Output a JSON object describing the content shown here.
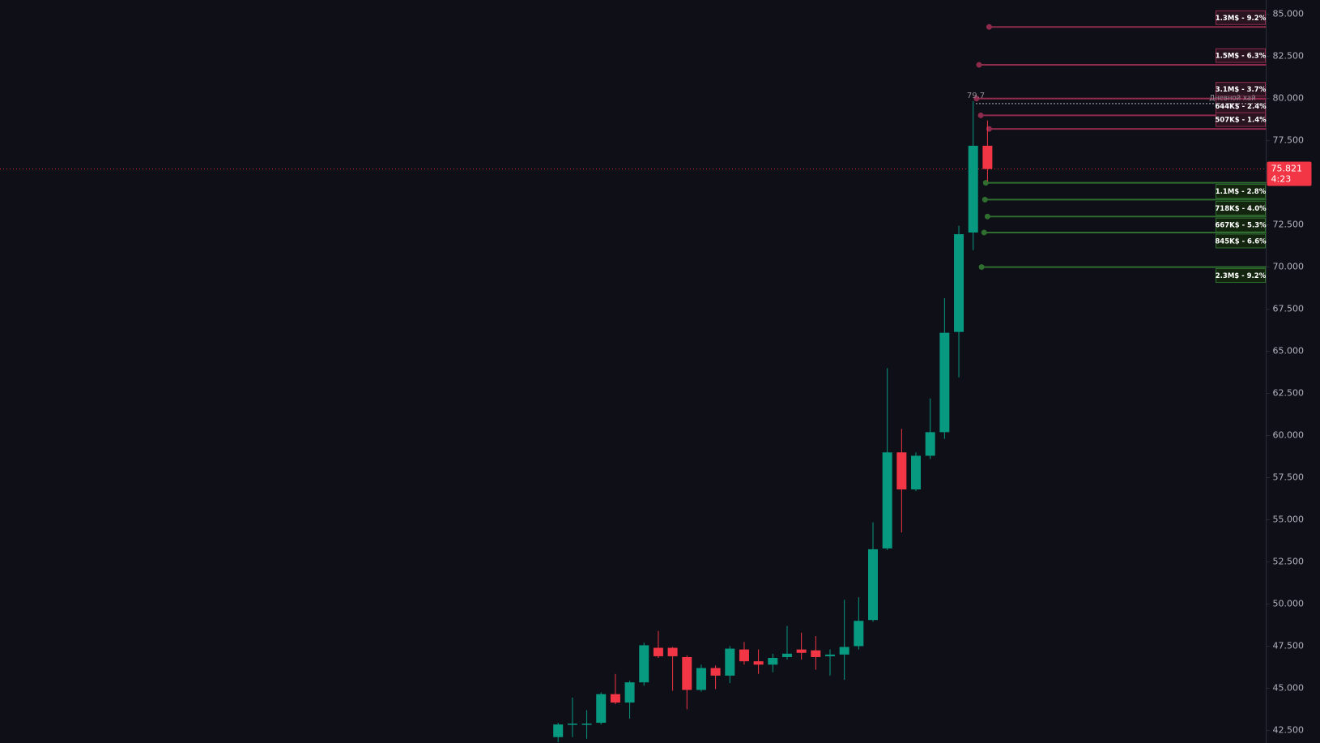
{
  "chart_data": {
    "type": "candlestick",
    "open": [
      42100,
      42850,
      42850,
      42950,
      44650,
      44150,
      45350,
      47400,
      47400,
      46850,
      44900,
      46200,
      45750,
      47300,
      46600,
      46400,
      46850,
      47300,
      47250,
      46900,
      47000,
      47500,
      49050,
      53300,
      59000,
      56800,
      58800,
      60200,
      66150,
      72050,
      77200
    ],
    "high": [
      42950,
      44450,
      43700,
      44750,
      45850,
      45450,
      47700,
      48400,
      47450,
      46950,
      46400,
      46350,
      47500,
      47750,
      47300,
      47050,
      48700,
      48300,
      48100,
      47300,
      50250,
      50400,
      54850,
      64000,
      60400,
      59000,
      62200,
      68150,
      72450,
      79850,
      78700
    ],
    "low": [
      41800,
      42100,
      42000,
      42850,
      44050,
      43200,
      45150,
      46800,
      44850,
      43750,
      44800,
      44950,
      45300,
      46400,
      45850,
      45950,
      46700,
      46700,
      46100,
      45750,
      45500,
      47300,
      48950,
      53200,
      54250,
      56700,
      58600,
      59800,
      63450,
      71000,
      75100
    ],
    "close": [
      42850,
      42900,
      42900,
      44650,
      44150,
      45350,
      47550,
      46900,
      46900,
      44900,
      46200,
      45750,
      47350,
      46600,
      46400,
      46800,
      47050,
      47100,
      46850,
      47000,
      47450,
      49000,
      53250,
      59000,
      56800,
      58800,
      60200,
      66100,
      71950,
      77200,
      75821
    ],
    "up_color": "#089981",
    "down_color": "#f23645",
    "ylim": [
      41750,
      85850
    ],
    "yticks": [
      {
        "value": 42500,
        "label": "42.500"
      },
      {
        "value": 45000,
        "label": "45.000"
      },
      {
        "value": 47500,
        "label": "47.500"
      },
      {
        "value": 50000,
        "label": "50.000"
      },
      {
        "value": 52500,
        "label": "52.500"
      },
      {
        "value": 55000,
        "label": "55.000"
      },
      {
        "value": 57500,
        "label": "57.500"
      },
      {
        "value": 60000,
        "label": "60.000"
      },
      {
        "value": 62500,
        "label": "62.500"
      },
      {
        "value": 65000,
        "label": "65.000"
      },
      {
        "value": 67500,
        "label": "67.500"
      },
      {
        "value": 70000,
        "label": "70.000"
      },
      {
        "value": 72500,
        "label": "72.500"
      },
      {
        "value": 75000,
        "label": "75.000"
      },
      {
        "value": 77500,
        "label": "77.500"
      },
      {
        "value": 80000,
        "label": "80.000"
      },
      {
        "value": 82500,
        "label": "82.500"
      },
      {
        "value": 85000,
        "label": "85.000"
      }
    ],
    "current_price": {
      "value": 75821,
      "label": "75.821",
      "countdown": "4:23"
    },
    "daily_high": {
      "value": 79700,
      "label": "79.7",
      "name": "Дневной хай"
    },
    "short_color": "#8e2a4c",
    "long_color": "#2f6e2f",
    "levels": [
      {
        "label": "1.3M$ - 9.2%",
        "price": 84250,
        "side": "short"
      },
      {
        "label": "1.5M$ - 6.3%",
        "price": 82000,
        "side": "short"
      },
      {
        "label": "3.1M$ - 3.7%",
        "price": 80000,
        "side": "short"
      },
      {
        "label": "644K$ - 2.4%",
        "price": 79000,
        "side": "short"
      },
      {
        "label": "507K$ - 1.4%",
        "price": 78200,
        "side": "short"
      },
      {
        "label": "1.1M$ - 2.8%",
        "price": 75000,
        "side": "long"
      },
      {
        "label": "718K$ - 4.0%",
        "price": 74000,
        "side": "long"
      },
      {
        "label": "667K$ - 5.3%",
        "price": 73000,
        "side": "long"
      },
      {
        "label": "845K$ - 6.6%",
        "price": 72050,
        "side": "long"
      },
      {
        "label": "2.3M$ - 9.2%",
        "price": 70000,
        "side": "long"
      }
    ]
  }
}
